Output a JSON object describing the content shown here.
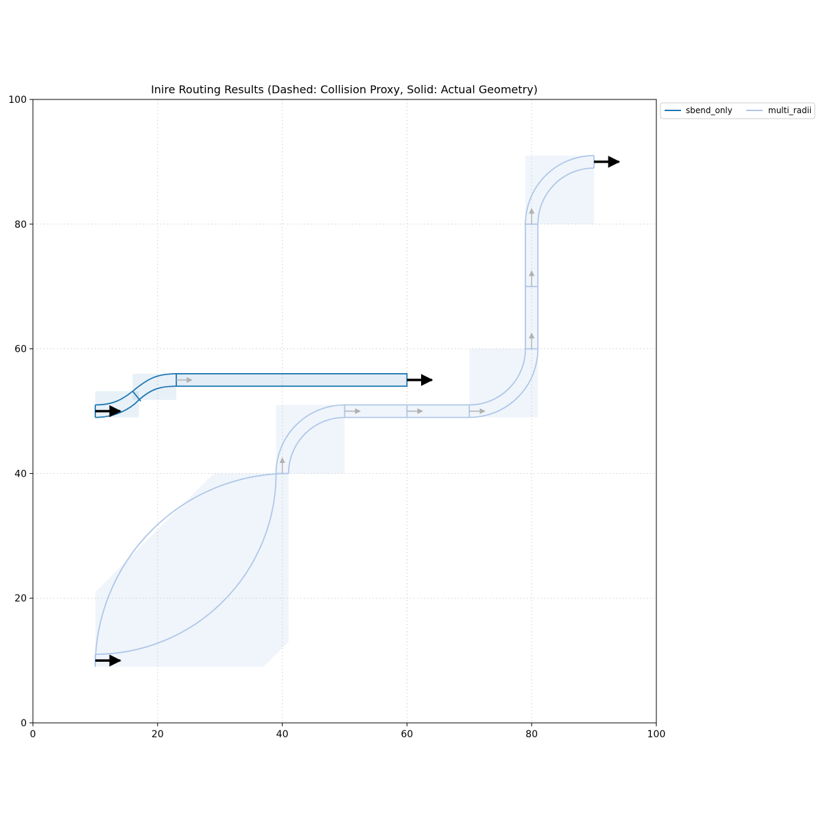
{
  "chart_data": {
    "type": "line",
    "title": "Inire Routing Results (Dashed: Collision Proxy, Solid: Actual Geometry)",
    "xlabel": "",
    "ylabel": "",
    "xlim": [
      0,
      100
    ],
    "ylim": [
      0,
      100
    ],
    "xticks": [
      "0",
      "20",
      "40",
      "60",
      "80",
      "100"
    ],
    "yticks": [
      "0",
      "20",
      "40",
      "60",
      "80",
      "100"
    ],
    "grid": true,
    "legend_position": "outside-top-right",
    "legend": [
      {
        "label": "sbend_only",
        "color": "#1f77b4"
      },
      {
        "label": "multi_radii",
        "color": "#aec7e8"
      }
    ],
    "series": [
      {
        "name": "sbend_only",
        "color": "#1f77b4",
        "path": [
          [
            10,
            50
          ],
          [
            16.5,
            52.3
          ],
          [
            23,
            55
          ],
          [
            60,
            55
          ]
        ],
        "port_start": [
          10,
          50
        ],
        "port_end": [
          60,
          55
        ]
      },
      {
        "name": "multi_radii",
        "color": "#aec7e8",
        "path": [
          [
            10,
            10
          ],
          [
            40,
            40
          ],
          [
            40,
            40
          ],
          [
            50,
            50
          ],
          [
            70,
            50
          ],
          [
            80,
            60
          ],
          [
            80,
            80
          ],
          [
            90,
            90
          ]
        ],
        "port_start": [
          10,
          10
        ],
        "port_end": [
          90,
          90
        ]
      }
    ],
    "end_arrows": [
      [
        10,
        50
      ],
      [
        60,
        55
      ],
      [
        10,
        10
      ],
      [
        90,
        90
      ]
    ]
  }
}
